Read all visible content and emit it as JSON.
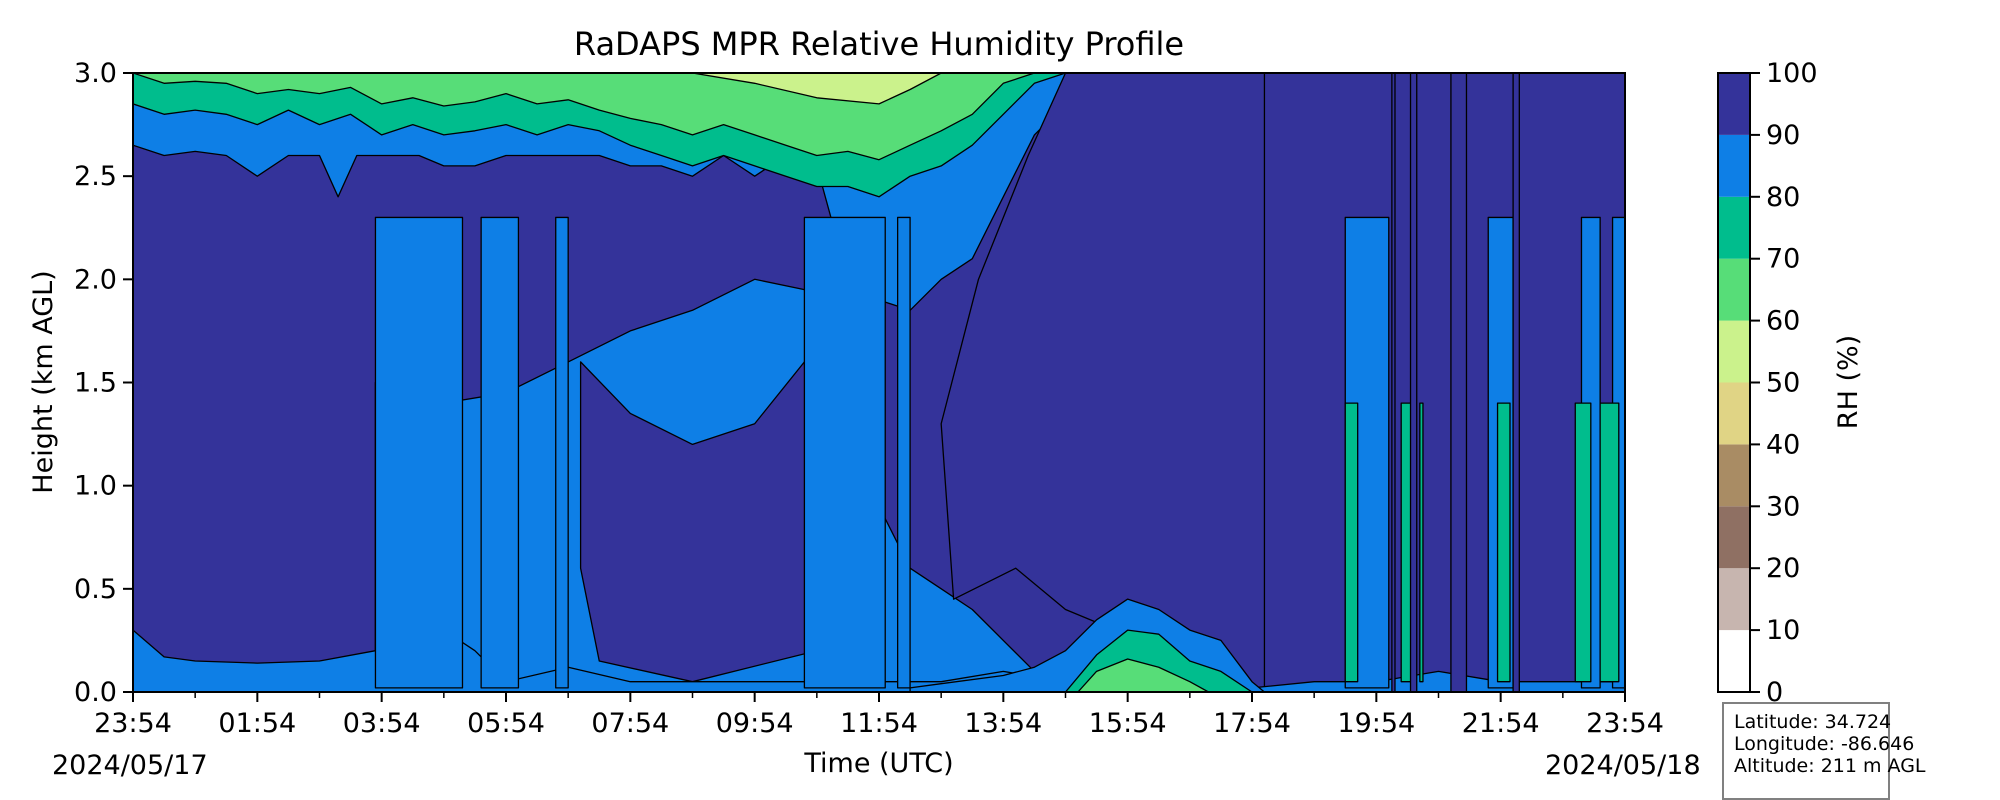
{
  "chart_data": {
    "type": "heatmap",
    "title": "RaDAPS MPR Relative Humidity Profile",
    "xlabel": "Time (UTC)",
    "ylabel": "Height (km AGL)",
    "start_date_label": "2024/05/17",
    "end_date_label": "2024/05/18",
    "x_tick_labels": [
      "23:54",
      "01:54",
      "03:54",
      "05:54",
      "07:54",
      "09:54",
      "11:54",
      "13:54",
      "15:54",
      "17:54",
      "19:54",
      "21:54",
      "23:54"
    ],
    "y_ticks": [
      0.0,
      0.5,
      1.0,
      1.5,
      2.0,
      2.5,
      3.0
    ],
    "y_tick_labels": [
      "0.0",
      "0.5",
      "1.0",
      "1.5",
      "2.0",
      "2.5",
      "3.0"
    ],
    "xlim_hours": [
      0,
      24
    ],
    "ylim": [
      0,
      3.0
    ],
    "colorbar": {
      "label": "RH (%)",
      "ticks": [
        0,
        10,
        20,
        30,
        40,
        50,
        60,
        70,
        80,
        90,
        100
      ],
      "levels": [
        {
          "from": 0,
          "to": 10,
          "color": "#ffffff"
        },
        {
          "from": 10,
          "to": 20,
          "color": "#c7b5af"
        },
        {
          "from": 20,
          "to": 30,
          "color": "#8f7063"
        },
        {
          "from": 30,
          "to": 40,
          "color": "#a98c64"
        },
        {
          "from": 40,
          "to": 50,
          "color": "#e0d485"
        },
        {
          "from": 50,
          "to": 60,
          "color": "#cbf28c"
        },
        {
          "from": 60,
          "to": 70,
          "color": "#57dd78"
        },
        {
          "from": 70,
          "to": 80,
          "color": "#00bd8d"
        },
        {
          "from": 80,
          "to": 90,
          "color": "#0e7fe6"
        },
        {
          "from": 90,
          "to": 100,
          "color": "#34339a"
        }
      ]
    },
    "contours": {
      "rh90_top_km": [
        [
          0.0,
          2.65
        ],
        [
          0.5,
          2.6
        ],
        [
          1.0,
          2.62
        ],
        [
          1.5,
          2.6
        ],
        [
          2.0,
          2.5
        ],
        [
          2.5,
          2.6
        ],
        [
          3.0,
          2.6
        ],
        [
          3.3,
          2.4
        ],
        [
          3.6,
          2.6
        ],
        [
          4.2,
          2.6
        ],
        [
          4.6,
          2.6
        ],
        [
          5.0,
          2.55
        ],
        [
          5.5,
          2.55
        ],
        [
          6.0,
          2.6
        ],
        [
          6.5,
          2.6
        ],
        [
          7.0,
          2.6
        ],
        [
          7.5,
          2.6
        ],
        [
          8.0,
          2.55
        ],
        [
          8.5,
          2.55
        ],
        [
          9.0,
          2.5
        ],
        [
          9.5,
          2.6
        ],
        [
          10.0,
          2.5
        ],
        [
          10.5,
          2.6
        ],
        [
          10.8,
          2.6
        ],
        [
          11.0,
          2.55
        ],
        [
          11.5,
          2.0
        ],
        [
          12.0,
          1.9
        ],
        [
          12.5,
          1.85
        ],
        [
          13.0,
          2.0
        ],
        [
          13.5,
          2.1
        ],
        [
          14.0,
          2.4
        ],
        [
          14.5,
          2.7
        ],
        [
          15.0,
          2.85
        ],
        [
          15.3,
          3.0
        ],
        [
          24.0,
          3.0
        ]
      ],
      "rh90_gap_km": [
        [
          3.9,
          1.5
        ],
        [
          4.4,
          1.2
        ],
        [
          5.0,
          1.4
        ],
        [
          6.0,
          1.45
        ],
        [
          7.0,
          1.6
        ],
        [
          8.0,
          1.75
        ],
        [
          9.0,
          1.85
        ],
        [
          10.0,
          2.0
        ],
        [
          10.8,
          1.95
        ],
        [
          11.0,
          1.5
        ],
        [
          11.5,
          1.2
        ],
        [
          12.0,
          0.9
        ],
        [
          12.5,
          0.6
        ],
        [
          13.0,
          0.5
        ],
        [
          13.5,
          0.4
        ],
        [
          14.0,
          0.25
        ],
        [
          14.5,
          0.1
        ],
        [
          15.0,
          0.05
        ]
      ],
      "rh90_bottom_km": [
        [
          0.0,
          0.3
        ],
        [
          0.5,
          0.17
        ],
        [
          1.0,
          0.15
        ],
        [
          2.0,
          0.14
        ],
        [
          3.0,
          0.15
        ],
        [
          3.9,
          0.2
        ],
        [
          4.4,
          0.05
        ],
        [
          5.0,
          0.3
        ],
        [
          5.5,
          0.2
        ],
        [
          6.0,
          0.05
        ],
        [
          7.0,
          0.12
        ],
        [
          8.0,
          0.05
        ],
        [
          9.0,
          0.05
        ],
        [
          10.0,
          0.05
        ],
        [
          10.8,
          0.05
        ],
        [
          11.0,
          0.1
        ],
        [
          12.0,
          0.05
        ],
        [
          13.0,
          0.05
        ],
        [
          14.0,
          0.1
        ],
        [
          15.0,
          0.05
        ],
        [
          16.0,
          0.05
        ],
        [
          17.0,
          0.05
        ],
        [
          18.0,
          0.02
        ],
        [
          19.0,
          0.05
        ],
        [
          20.0,
          0.05
        ],
        [
          21.0,
          0.1
        ],
        [
          22.0,
          0.05
        ],
        [
          23.0,
          0.05
        ],
        [
          24.0,
          0.05
        ]
      ],
      "rh80_top_km": [
        [
          0.0,
          2.85
        ],
        [
          0.5,
          2.8
        ],
        [
          1.0,
          2.82
        ],
        [
          1.5,
          2.8
        ],
        [
          2.0,
          2.75
        ],
        [
          2.5,
          2.82
        ],
        [
          3.0,
          2.75
        ],
        [
          3.5,
          2.8
        ],
        [
          4.0,
          2.7
        ],
        [
          4.5,
          2.75
        ],
        [
          5.0,
          2.7
        ],
        [
          5.5,
          2.72
        ],
        [
          6.0,
          2.75
        ],
        [
          6.5,
          2.7
        ],
        [
          7.0,
          2.75
        ],
        [
          7.5,
          2.72
        ],
        [
          8.0,
          2.65
        ],
        [
          8.5,
          2.6
        ],
        [
          9.0,
          2.55
        ],
        [
          9.5,
          2.6
        ],
        [
          10.0,
          2.55
        ],
        [
          10.5,
          2.5
        ],
        [
          11.0,
          2.45
        ],
        [
          11.5,
          2.45
        ],
        [
          12.0,
          2.4
        ],
        [
          12.5,
          2.5
        ],
        [
          13.0,
          2.55
        ],
        [
          13.5,
          2.65
        ],
        [
          14.0,
          2.8
        ],
        [
          14.5,
          2.95
        ],
        [
          15.0,
          3.0
        ]
      ],
      "rh70_top_km": [
        [
          0.0,
          3.0
        ],
        [
          0.5,
          2.95
        ],
        [
          1.0,
          2.96
        ],
        [
          1.5,
          2.95
        ],
        [
          2.0,
          2.9
        ],
        [
          2.5,
          2.92
        ],
        [
          3.0,
          2.9
        ],
        [
          3.5,
          2.93
        ],
        [
          4.0,
          2.85
        ],
        [
          4.5,
          2.88
        ],
        [
          5.0,
          2.84
        ],
        [
          5.5,
          2.86
        ],
        [
          6.0,
          2.9
        ],
        [
          6.5,
          2.85
        ],
        [
          7.0,
          2.87
        ],
        [
          7.5,
          2.82
        ],
        [
          8.0,
          2.78
        ],
        [
          8.5,
          2.75
        ],
        [
          9.0,
          2.7
        ],
        [
          9.5,
          2.75
        ],
        [
          10.0,
          2.7
        ],
        [
          10.5,
          2.65
        ],
        [
          11.0,
          2.6
        ],
        [
          11.5,
          2.62
        ],
        [
          12.0,
          2.58
        ],
        [
          12.5,
          2.65
        ],
        [
          13.0,
          2.72
        ],
        [
          13.5,
          2.8
        ],
        [
          14.0,
          2.95
        ],
        [
          14.5,
          3.0
        ]
      ],
      "rh60_top_km": [
        [
          0.0,
          3.0
        ],
        [
          2.0,
          3.0
        ],
        [
          2.5,
          2.98
        ],
        [
          3.0,
          3.0
        ],
        [
          6.0,
          3.0
        ],
        [
          7.0,
          2.97
        ],
        [
          8.0,
          2.9
        ],
        [
          9.0,
          2.85
        ],
        [
          10.0,
          2.82
        ],
        [
          11.0,
          2.76
        ],
        [
          12.0,
          2.72
        ],
        [
          12.5,
          2.8
        ],
        [
          13.0,
          2.9
        ],
        [
          13.5,
          3.0
        ],
        [
          24.0,
          3.0
        ]
      ],
      "rh50_top_km": [
        [
          9.0,
          3.0
        ],
        [
          10.0,
          2.95
        ],
        [
          11.0,
          2.88
        ],
        [
          12.0,
          2.85
        ],
        [
          12.5,
          2.92
        ],
        [
          13.0,
          3.0
        ]
      ],
      "rh80_bottom_km": [
        [
          12.5,
          0.02
        ],
        [
          13.0,
          0.04
        ],
        [
          14.0,
          0.08
        ],
        [
          14.5,
          0.12
        ],
        [
          15.0,
          0.2
        ],
        [
          15.5,
          0.35
        ],
        [
          16.0,
          0.45
        ],
        [
          16.5,
          0.4
        ],
        [
          17.0,
          0.3
        ],
        [
          17.5,
          0.25
        ],
        [
          18.0,
          0.05
        ],
        [
          18.2,
          0.0
        ]
      ],
      "rh70_bottom_km": [
        [
          15.0,
          0.0
        ],
        [
          15.5,
          0.18
        ],
        [
          16.0,
          0.3
        ],
        [
          16.5,
          0.28
        ],
        [
          17.0,
          0.15
        ],
        [
          17.5,
          0.1
        ],
        [
          18.0,
          0.0
        ]
      ]
    },
    "columns_hours": {
      "rh80_slots": [
        [
          3.9,
          5.3
        ],
        [
          5.6,
          6.2
        ],
        [
          6.8,
          7.0
        ],
        [
          10.8,
          12.1
        ],
        [
          12.3,
          12.5
        ],
        [
          19.5,
          20.2
        ],
        [
          21.8,
          22.2
        ],
        [
          23.3,
          23.6
        ],
        [
          23.8,
          24.0
        ]
      ],
      "rh70_columns": [
        [
          19.5,
          19.7
        ],
        [
          20.4,
          20.6
        ],
        [
          20.7,
          20.75
        ],
        [
          21.95,
          22.15
        ],
        [
          23.2,
          23.45
        ],
        [
          23.6,
          23.9
        ]
      ],
      "rh90_columns": [
        [
          20.25,
          20.3
        ],
        [
          20.55,
          20.65
        ],
        [
          21.2,
          21.45
        ],
        [
          22.2,
          22.3
        ]
      ]
    }
  },
  "info": {
    "latitude": "Latitude: 34.724",
    "longitude": "Longitude: -86.646",
    "altitude": "Altitude: 211 m AGL"
  }
}
